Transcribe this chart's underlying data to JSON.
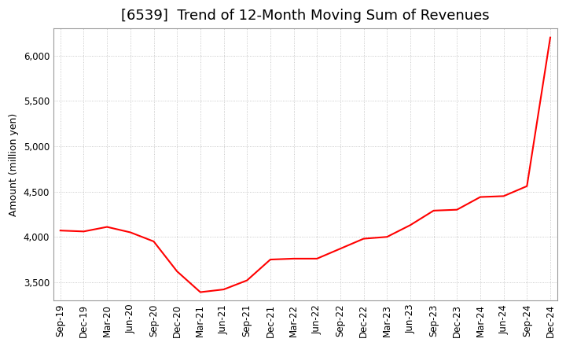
{
  "title": "[6539]  Trend of 12-Month Moving Sum of Revenues",
  "ylabel": "Amount (million yen)",
  "background_color": "#ffffff",
  "line_color": "#ff0000",
  "grid_color": "#bbbbbb",
  "x_labels": [
    "Sep-19",
    "Dec-19",
    "Mar-20",
    "Jun-20",
    "Sep-20",
    "Dec-20",
    "Mar-21",
    "Jun-21",
    "Sep-21",
    "Dec-21",
    "Mar-22",
    "Jun-22",
    "Sep-22",
    "Dec-22",
    "Mar-23",
    "Jun-23",
    "Sep-23",
    "Dec-23",
    "Mar-24",
    "Jun-24",
    "Sep-24",
    "Dec-24"
  ],
  "y_values": [
    4070,
    4060,
    4110,
    4050,
    3950,
    3620,
    3390,
    3420,
    3520,
    3750,
    3760,
    3760,
    3870,
    3980,
    4000,
    4130,
    4290,
    4300,
    4440,
    4450,
    4560,
    6200
  ],
  "ylim": [
    3300,
    6300
  ],
  "yticks": [
    3500,
    4000,
    4500,
    5000,
    5500,
    6000
  ],
  "title_fontsize": 13,
  "axis_fontsize": 9,
  "tick_fontsize": 8.5
}
